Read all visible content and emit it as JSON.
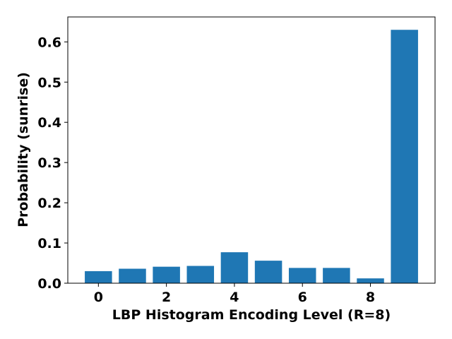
{
  "chart_data": {
    "type": "bar",
    "x": [
      0,
      1,
      2,
      3,
      4,
      5,
      6,
      7,
      8,
      9
    ],
    "values": [
      0.03,
      0.036,
      0.041,
      0.043,
      0.077,
      0.056,
      0.038,
      0.038,
      0.012,
      0.63
    ],
    "xlabel": "LBP Histogram Encoding Level (R=8)",
    "ylabel": "Probability (sunrise)",
    "xlim": [
      -0.9,
      9.9
    ],
    "ylim": [
      0,
      0.662
    ],
    "xticks": [
      0,
      2,
      4,
      6,
      8
    ],
    "xtick_labels": [
      "0",
      "2",
      "4",
      "6",
      "8"
    ],
    "yticks": [
      0.0,
      0.1,
      0.2,
      0.3,
      0.4,
      0.5,
      0.6
    ],
    "ytick_labels": [
      "0.0",
      "0.1",
      "0.2",
      "0.3",
      "0.4",
      "0.5",
      "0.6"
    ],
    "bar_color": "#1f77b4",
    "grid": false,
    "legend": "none"
  }
}
